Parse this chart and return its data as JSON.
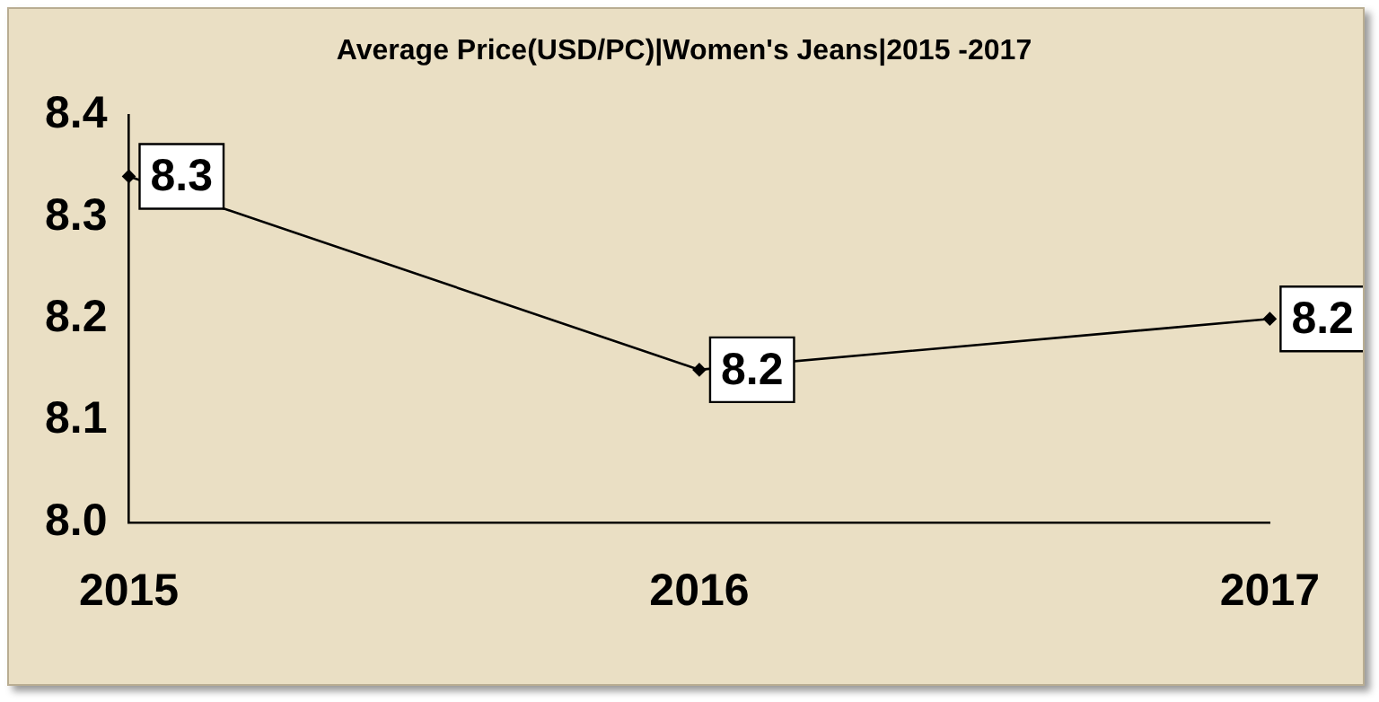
{
  "chart_data": {
    "type": "line",
    "title": "Average Price(USD/PC)|Women's Jeans|2015 -2017",
    "categories": [
      "2015",
      "2016",
      "2017"
    ],
    "values": [
      8.34,
      8.15,
      8.2
    ],
    "value_labels": [
      "8.3",
      "8.2",
      "8.2"
    ],
    "color": "#000000",
    "marker": "diamond",
    "ylim": [
      8.0,
      8.4
    ],
    "yticks": [
      {
        "value": 8.0,
        "label": "8.0"
      },
      {
        "value": 8.1,
        "label": "8.1"
      },
      {
        "value": 8.2,
        "label": "8.2"
      },
      {
        "value": 8.3,
        "label": "8.3"
      },
      {
        "value": 8.4,
        "label": "8.4"
      }
    ]
  }
}
